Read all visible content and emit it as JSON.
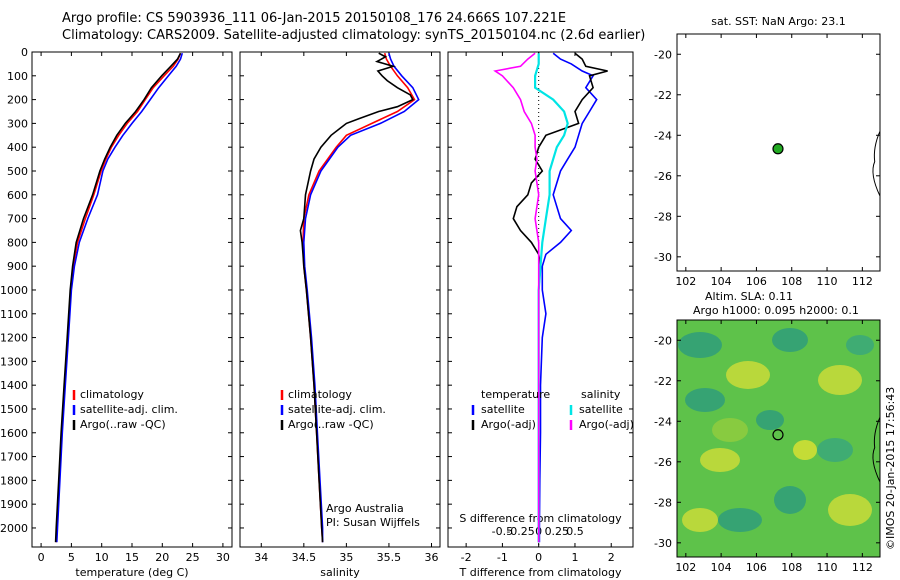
{
  "title": {
    "line1": "Argo profile: CS 5903936_111 06-Jan-2015 20150108_176 24.666S 107.221E",
    "line2": "Climatology: CARS2009. Satellite-adjusted climatology: synTS_20150104.nc (2.6d earlier)"
  },
  "colors": {
    "clim": "#ff0000",
    "sat": "#0000ff",
    "argo": "#000000",
    "sal_sat": "#00e5e5",
    "sal_argo": "#ff00ff",
    "point": "#22aa22"
  },
  "chart_data": [
    {
      "id": "temperature",
      "type": "line",
      "xlabel": "temperature (deg C)",
      "xlim": [
        -1.5,
        31.5
      ],
      "xticks": [
        0,
        5,
        10,
        15,
        20,
        25,
        30
      ],
      "ylim": [
        2080,
        0
      ],
      "yticks": [
        0,
        100,
        200,
        300,
        400,
        500,
        600,
        700,
        800,
        900,
        1000,
        1100,
        1200,
        1300,
        1400,
        1500,
        1600,
        1700,
        1800,
        1900,
        2000
      ],
      "legend": [
        "climatology",
        "satellite-adj. clim.",
        "Argo(..raw -QC)"
      ],
      "series": [
        {
          "name": "climatology",
          "color": "#ff0000",
          "depth": [
            5,
            30,
            60,
            100,
            150,
            200,
            250,
            300,
            350,
            400,
            450,
            500,
            600,
            700,
            800,
            900,
            1000,
            1200,
            1400,
            1600,
            1800,
            2000,
            2060
          ],
          "values": [
            23,
            22.6,
            21.8,
            20.3,
            18.5,
            17.2,
            15.9,
            14.2,
            12.8,
            11.6,
            10.7,
            9.9,
            8.7,
            7.3,
            6.0,
            5.3,
            4.9,
            4.4,
            3.9,
            3.4,
            3.0,
            2.6,
            2.5
          ]
        },
        {
          "name": "satellite-adj. clim.",
          "color": "#0000ff",
          "depth": [
            5,
            30,
            60,
            100,
            150,
            200,
            250,
            300,
            350,
            400,
            450,
            500,
            600,
            700,
            800,
            900,
            1000,
            1200,
            1400,
            1600,
            1800,
            2000,
            2060
          ],
          "values": [
            23.3,
            23.0,
            22.3,
            21.0,
            19.4,
            18.0,
            16.6,
            15.0,
            13.5,
            12.2,
            11.0,
            10.2,
            9.3,
            7.7,
            6.3,
            5.5,
            5.0,
            4.5,
            4.0,
            3.5,
            3.1,
            2.7,
            2.6
          ]
        },
        {
          "name": "Argo(..raw -QC)",
          "color": "#000000",
          "depth": [
            5,
            30,
            60,
            100,
            150,
            200,
            250,
            300,
            350,
            400,
            450,
            500,
            600,
            700,
            800,
            900,
            1000,
            1200,
            1400,
            1600,
            1800,
            2000,
            2060
          ],
          "values": [
            23.0,
            22.5,
            21.4,
            19.9,
            18.2,
            17.0,
            15.6,
            13.9,
            12.5,
            11.4,
            10.5,
            9.7,
            8.5,
            7.0,
            5.8,
            5.2,
            4.8,
            4.3,
            3.8,
            3.3,
            2.9,
            2.5,
            2.4
          ]
        }
      ]
    },
    {
      "id": "salinity",
      "type": "line",
      "xlabel": "salinity",
      "xlim": [
        33.75,
        36.1
      ],
      "xticks": [
        34,
        34.5,
        35,
        35.5,
        36
      ],
      "ylim": [
        2080,
        0
      ],
      "legend": [
        "climatology",
        "satellite-adj. clim.",
        "Argo(..raw -QC)"
      ],
      "annotation": [
        "Argo Australia",
        "PI: Susan Wijffels"
      ],
      "series": [
        {
          "name": "climatology",
          "color": "#ff0000",
          "depth": [
            5,
            30,
            60,
            100,
            150,
            200,
            250,
            300,
            350,
            400,
            450,
            500,
            600,
            700,
            800,
            900,
            1000,
            1200,
            1400,
            1600,
            1800,
            2000,
            2060
          ],
          "values": [
            35.45,
            35.47,
            35.52,
            35.6,
            35.72,
            35.8,
            35.6,
            35.3,
            35.0,
            34.88,
            34.78,
            34.68,
            34.56,
            34.5,
            34.49,
            34.5,
            34.53,
            34.58,
            34.62,
            34.65,
            34.68,
            34.71,
            34.72
          ]
        },
        {
          "name": "satellite-adj. clim.",
          "color": "#0000ff",
          "depth": [
            5,
            30,
            60,
            100,
            150,
            200,
            250,
            300,
            350,
            400,
            450,
            500,
            600,
            700,
            800,
            900,
            1000,
            1200,
            1400,
            1600,
            1800,
            2000,
            2060
          ],
          "values": [
            35.5,
            35.52,
            35.56,
            35.65,
            35.78,
            35.85,
            35.68,
            35.4,
            35.05,
            34.9,
            34.8,
            34.7,
            34.58,
            34.52,
            34.5,
            34.51,
            34.54,
            34.59,
            34.63,
            34.66,
            34.69,
            34.72,
            34.72
          ]
        },
        {
          "name": "Argo(..raw -QC)",
          "color": "#000000",
          "depth": [
            5,
            20,
            40,
            60,
            80,
            100,
            120,
            150,
            180,
            200,
            230,
            250,
            280,
            300,
            350,
            400,
            450,
            500,
            600,
            700,
            750,
            800,
            850,
            900,
            1000,
            1200,
            1400,
            1600,
            1800,
            2000,
            2060
          ],
          "values": [
            35.38,
            35.46,
            35.36,
            35.55,
            35.37,
            35.42,
            35.48,
            35.6,
            35.75,
            35.78,
            35.6,
            35.38,
            35.15,
            35.0,
            34.82,
            34.7,
            34.62,
            34.58,
            34.52,
            34.5,
            34.46,
            34.48,
            34.49,
            34.5,
            34.53,
            34.58,
            34.62,
            34.65,
            34.68,
            34.71,
            34.72
          ]
        }
      ]
    },
    {
      "id": "differences",
      "type": "line",
      "xlabel_bottom": "T difference from climatology",
      "xlabel_top": "S difference from climatology",
      "xlim": [
        -2.5,
        2.6
      ],
      "xticks": [
        -2,
        -1,
        0,
        1,
        2
      ],
      "xticks_top": [
        "-0.5",
        "-0.25",
        "0",
        "0.25",
        "0.5"
      ],
      "ylim": [
        2080,
        0
      ],
      "legend_temperature": {
        "title": "temperature",
        "items": [
          "satellite",
          "Argo(-adj)"
        ]
      },
      "legend_salinity": {
        "title": "salinity",
        "items": [
          "satellite",
          "Argo(-adj)"
        ]
      },
      "series": [
        {
          "name": "satellite",
          "group": "temperature",
          "color": "#0000ff",
          "depth": [
            5,
            30,
            50,
            80,
            100,
            150,
            200,
            250,
            300,
            350,
            400,
            450,
            500,
            600,
            700,
            750,
            800,
            850,
            900,
            1000,
            1100,
            1200,
            1400,
            1600,
            1800,
            2000,
            2060
          ],
          "values": [
            0.4,
            0.6,
            0.9,
            1.2,
            1.5,
            1.3,
            1.6,
            1.4,
            1.2,
            1.1,
            1.0,
            0.8,
            0.6,
            0.4,
            0.6,
            0.9,
            0.6,
            0.2,
            0.1,
            0.1,
            0.2,
            0.1,
            0.05,
            0.05,
            0.03,
            0.02,
            0.02
          ]
        },
        {
          "name": "Argo(-adj)",
          "group": "temperature",
          "color": "#000000",
          "depth": [
            5,
            30,
            60,
            80,
            100,
            150,
            200,
            250,
            300,
            350,
            400,
            450,
            500,
            550,
            600,
            650,
            700,
            750,
            800,
            850,
            900,
            1000,
            1200,
            1400,
            1600,
            1800,
            2000,
            2060
          ],
          "values": [
            1.0,
            1.2,
            1.3,
            1.9,
            1.4,
            1.5,
            1.2,
            1.0,
            1.1,
            0.2,
            0.0,
            -0.1,
            0.1,
            -0.2,
            -0.3,
            -0.6,
            -0.7,
            -0.5,
            -0.2,
            0.0,
            0.05,
            0.0,
            0.0,
            0.0,
            0.0,
            0.0,
            0.0,
            0.0
          ]
        },
        {
          "name": "satellite",
          "group": "salinity",
          "color": "#00e5e5",
          "depth": [
            5,
            50,
            100,
            150,
            200,
            250,
            300,
            350,
            400,
            450,
            500,
            600,
            700,
            800,
            900,
            1000,
            1200,
            1400,
            1600,
            1800,
            2000,
            2060
          ],
          "values": [
            0.0,
            0.0,
            -0.1,
            -0.1,
            0.4,
            0.7,
            0.8,
            0.7,
            0.5,
            0.4,
            0.3,
            0.3,
            0.2,
            0.1,
            0.05,
            0.0,
            0.0,
            0.0,
            0.0,
            0.0,
            0.0,
            0.0
          ]
        },
        {
          "name": "Argo(-adj)",
          "group": "salinity",
          "color": "#ff00ff",
          "depth": [
            5,
            30,
            60,
            80,
            100,
            150,
            200,
            250,
            300,
            350,
            400,
            450,
            500,
            600,
            700,
            800,
            900,
            1000,
            1200,
            1400,
            1600,
            1800,
            2000,
            2060
          ],
          "values": [
            -0.1,
            -0.3,
            -0.5,
            -1.2,
            -1.0,
            -0.7,
            -0.5,
            -0.4,
            -0.2,
            -0.1,
            -0.1,
            -0.05,
            -0.1,
            0.0,
            -0.1,
            0.0,
            0.0,
            0.0,
            0.0,
            0.0,
            0.0,
            0.0,
            0.0,
            0.0
          ]
        }
      ]
    },
    {
      "id": "sst_map",
      "type": "scatter",
      "title": "sat. SST: NaN Argo: 23.1",
      "xlim": [
        101.5,
        113
      ],
      "ylim": [
        -30.7,
        -19
      ],
      "xticks": [
        102,
        104,
        106,
        108,
        110,
        112
      ],
      "yticks": [
        -20,
        -22,
        -24,
        -26,
        -28,
        -30
      ],
      "point": {
        "lon": 107.221,
        "lat": -24.666
      }
    },
    {
      "id": "sla_map",
      "type": "heatmap",
      "title1": "Altim. SLA: 0.11",
      "title2": "Argo h1000: 0.095 h2000: 0.1",
      "xlim": [
        101.5,
        113
      ],
      "ylim": [
        -30.7,
        -19
      ],
      "xticks": [
        102,
        104,
        106,
        108,
        110,
        112
      ],
      "yticks": [
        -20,
        -22,
        -24,
        -26,
        -28,
        -30
      ],
      "point": {
        "lon": 107.221,
        "lat": -24.666
      }
    }
  ],
  "footer_label": "©IMOS 20-Jan-2015 17:56:43"
}
